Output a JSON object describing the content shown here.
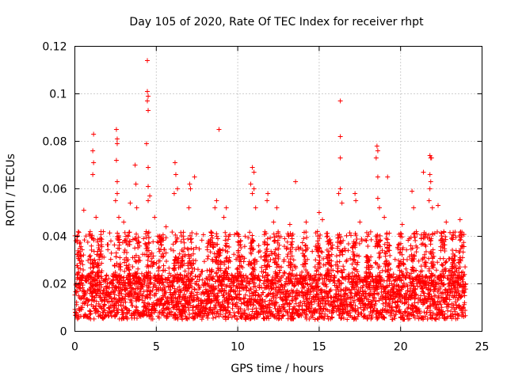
{
  "chart_data": {
    "type": "scatter",
    "title": "Day 105 of 2020, Rate Of TEC Index for receiver rhpt",
    "xlabel": "GPS time / hours",
    "ylabel": "ROTI / TECUs",
    "xlim": [
      0,
      25
    ],
    "ylim": [
      0,
      0.12
    ],
    "xticks": [
      0,
      5,
      10,
      15,
      20,
      25
    ],
    "xtick_labels": [
      "0",
      "5",
      "10",
      "15",
      "20",
      "25"
    ],
    "yticks": [
      0,
      0.02,
      0.04,
      0.06,
      0.08,
      0.1,
      0.12
    ],
    "ytick_labels": [
      "0",
      "0.02",
      "0.04",
      "0.06",
      "0.08",
      "0.1",
      "0.12"
    ],
    "grid": true,
    "marker": "+",
    "color": "#ff0000",
    "x_data_range": [
      0,
      24
    ],
    "dense_band_range": [
      0.005,
      0.03
    ],
    "series": [
      {
        "name": "ROTI",
        "points": [
          [
            1.15,
            0.083
          ],
          [
            1.1,
            0.076
          ],
          [
            1.15,
            0.071
          ],
          [
            1.1,
            0.066
          ],
          [
            0.55,
            0.051
          ],
          [
            1.3,
            0.048
          ],
          [
            2.55,
            0.085
          ],
          [
            2.6,
            0.081
          ],
          [
            2.6,
            0.079
          ],
          [
            2.55,
            0.072
          ],
          [
            2.5,
            0.055
          ],
          [
            2.7,
            0.048
          ],
          [
            3.4,
            0.054
          ],
          [
            3.7,
            0.07
          ],
          [
            3.75,
            0.062
          ],
          [
            3.8,
            0.052
          ],
          [
            4.45,
            0.114
          ],
          [
            4.45,
            0.101
          ],
          [
            4.5,
            0.099
          ],
          [
            4.45,
            0.097
          ],
          [
            4.5,
            0.093
          ],
          [
            4.4,
            0.079
          ],
          [
            4.5,
            0.069
          ],
          [
            4.5,
            0.061
          ],
          [
            4.5,
            0.055
          ],
          [
            4.6,
            0.057
          ],
          [
            4.9,
            0.048
          ],
          [
            6.15,
            0.071
          ],
          [
            6.2,
            0.066
          ],
          [
            6.3,
            0.06
          ],
          [
            6.1,
            0.058
          ],
          [
            7.05,
            0.062
          ],
          [
            7.1,
            0.06
          ],
          [
            7.35,
            0.065
          ],
          [
            7.0,
            0.052
          ],
          [
            8.85,
            0.085
          ],
          [
            8.6,
            0.052
          ],
          [
            9.3,
            0.052
          ],
          [
            10.9,
            0.069
          ],
          [
            11.0,
            0.067
          ],
          [
            10.8,
            0.062
          ],
          [
            11.0,
            0.06
          ],
          [
            10.9,
            0.058
          ],
          [
            11.1,
            0.052
          ],
          [
            11.85,
            0.058
          ],
          [
            11.8,
            0.055
          ],
          [
            12.4,
            0.052
          ],
          [
            13.55,
            0.063
          ],
          [
            14.2,
            0.046
          ],
          [
            15.0,
            0.05
          ],
          [
            16.3,
            0.097
          ],
          [
            16.3,
            0.082
          ],
          [
            16.3,
            0.073
          ],
          [
            16.3,
            0.06
          ],
          [
            16.2,
            0.058
          ],
          [
            16.4,
            0.054
          ],
          [
            17.2,
            0.058
          ],
          [
            17.25,
            0.055
          ],
          [
            18.55,
            0.078
          ],
          [
            18.6,
            0.076
          ],
          [
            18.5,
            0.073
          ],
          [
            18.6,
            0.065
          ],
          [
            18.6,
            0.056
          ],
          [
            18.7,
            0.052
          ],
          [
            19.2,
            0.065
          ],
          [
            19.0,
            0.048
          ],
          [
            20.7,
            0.059
          ],
          [
            20.8,
            0.052
          ],
          [
            21.4,
            0.067
          ],
          [
            21.8,
            0.074
          ],
          [
            21.85,
            0.073
          ],
          [
            21.9,
            0.073
          ],
          [
            21.8,
            0.066
          ],
          [
            21.85,
            0.063
          ],
          [
            21.8,
            0.06
          ],
          [
            21.75,
            0.055
          ],
          [
            21.95,
            0.052
          ],
          [
            22.3,
            0.053
          ],
          [
            23.65,
            0.047
          ],
          [
            23.7,
            0.041
          ],
          [
            2.6,
            0.063
          ],
          [
            2.6,
            0.058
          ],
          [
            3.0,
            0.046
          ],
          [
            5.6,
            0.044
          ],
          [
            8.7,
            0.055
          ],
          [
            9.15,
            0.048
          ],
          [
            12.2,
            0.046
          ],
          [
            13.2,
            0.045
          ],
          [
            15.2,
            0.047
          ],
          [
            17.5,
            0.046
          ],
          [
            20.1,
            0.045
          ],
          [
            22.8,
            0.046
          ]
        ]
      }
    ]
  }
}
